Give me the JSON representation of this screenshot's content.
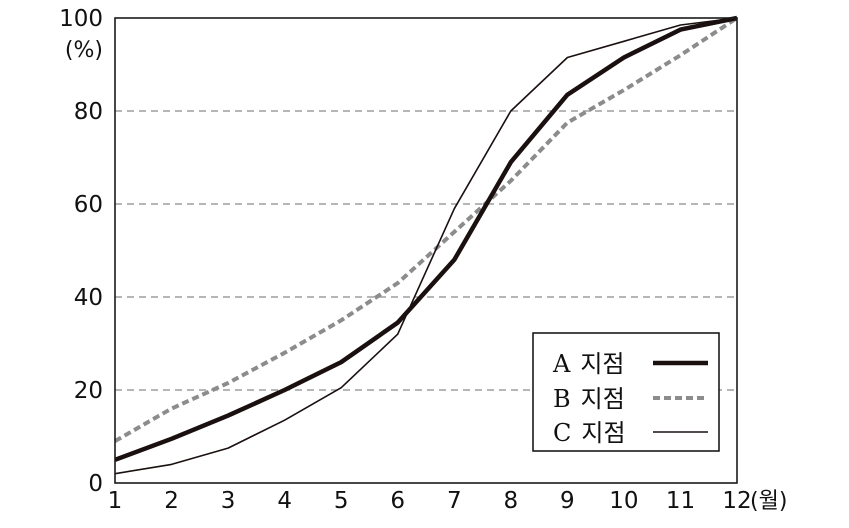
{
  "chart_data": {
    "type": "line",
    "x": [
      1,
      2,
      3,
      4,
      5,
      6,
      7,
      8,
      9,
      10,
      11,
      12
    ],
    "y_unit_label": "(%)",
    "x_unit_label": "(월)",
    "ylim": [
      0,
      100
    ],
    "xlim": [
      1,
      12
    ],
    "yticks": [
      0,
      20,
      40,
      60,
      80,
      100
    ],
    "grid": "horizontal-dashed",
    "legend_position": "bottom-right",
    "series": [
      {
        "name": "A 지점",
        "style": "thick-solid",
        "color": "#1a1010",
        "values": [
          5,
          9.5,
          14.5,
          20,
          26,
          34.5,
          48,
          69,
          83.5,
          91.5,
          97.5,
          100
        ]
      },
      {
        "name": "B 지점",
        "style": "dashed",
        "color": "#8c8c8c",
        "values": [
          9,
          16,
          21.5,
          28,
          35,
          43,
          54,
          65,
          77.5,
          84.5,
          92,
          100
        ]
      },
      {
        "name": "C 지점",
        "style": "thin-solid",
        "color": "#1a1010",
        "values": [
          2,
          4,
          7.5,
          13.5,
          20.5,
          32,
          59,
          80,
          91.5,
          95,
          98.5,
          100
        ]
      }
    ]
  }
}
